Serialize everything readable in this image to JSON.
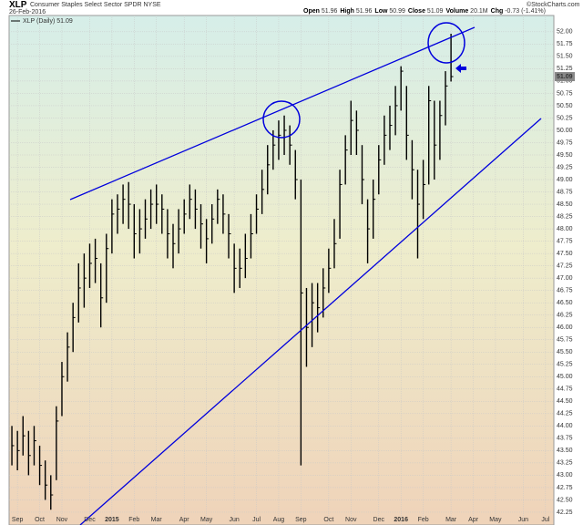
{
  "header": {
    "symbol": "XLP",
    "description": "Consumer Staples Select Sector SPDR NYSE",
    "date": "26-Feb-2016",
    "credit": "©StockCharts.com",
    "stats": [
      {
        "label": "Open",
        "value": "51.96"
      },
      {
        "label": "High",
        "value": "51.96"
      },
      {
        "label": "Low",
        "value": "50.99"
      },
      {
        "label": "Close",
        "value": "51.09"
      },
      {
        "label": "Volume",
        "value": "20.1M"
      },
      {
        "label": "Chg",
        "value": "-0.73 (-1.41%)"
      }
    ]
  },
  "chart_data": {
    "type": "ohlc",
    "last_price_label": "51.09",
    "grid": true,
    "categories": [
      null,
      "Sep",
      null,
      null,
      null,
      "Oct",
      null,
      null,
      null,
      "Nov",
      null,
      null,
      null,
      null,
      "Dec",
      null,
      null,
      null,
      "2015",
      null,
      null,
      null,
      "Feb",
      null,
      null,
      null,
      "Mar",
      null,
      null,
      null,
      null,
      "Apr",
      null,
      null,
      null,
      "May",
      null,
      null,
      null,
      null,
      "Jun",
      null,
      null,
      null,
      "Jul",
      null,
      null,
      null,
      "Aug",
      null,
      null,
      null,
      "Sep",
      null,
      null,
      null,
      null,
      "Oct",
      null,
      null,
      null,
      "Nov",
      null,
      null,
      null,
      null,
      "Dec",
      null,
      null,
      null,
      "2016",
      null,
      null,
      null,
      "Feb",
      null,
      null,
      null,
      null,
      "Mar",
      null,
      null,
      null,
      "Apr",
      null,
      null,
      null,
      "May",
      null,
      null,
      null,
      null,
      "Jun",
      null,
      null,
      null,
      "Jul",
      null
    ],
    "series": [
      {
        "name": "XLP (Daily) 51.09",
        "color": "#000000",
        "values": [
          43.6,
          43.5,
          43.8,
          43.4,
          43.7,
          43.2,
          42.8,
          42.6,
          44.1,
          45.0,
          45.6,
          46.2,
          46.8,
          47.0,
          47.3,
          47.4,
          46.6,
          47.6,
          48.3,
          48.4,
          48.6,
          48.5,
          47.9,
          48.0,
          48.2,
          48.5,
          48.5,
          48.4,
          47.9,
          47.7,
          48.0,
          48.3,
          48.6,
          48.4,
          48.1,
          47.8,
          48.2,
          48.6,
          48.3,
          47.9,
          47.2,
          47.2,
          47.4,
          47.9,
          48.4,
          48.8,
          49.3,
          49.7,
          49.9,
          50.0,
          49.7,
          49.0,
          46.7,
          46.0,
          46.5,
          46.4,
          46.8,
          47.2,
          47.7,
          48.9,
          49.6,
          50.2,
          50.0,
          49.0,
          48.0,
          48.6,
          49.4,
          49.9,
          50.1,
          50.5,
          51.2,
          49.9,
          49.2,
          48.5,
          48.9,
          50.6,
          49.7,
          50.3,
          50.9,
          51.09,
          null,
          null,
          null,
          null,
          null,
          null,
          null,
          null,
          null,
          null,
          null,
          null,
          null,
          null,
          null,
          null,
          null,
          null
        ],
        "high": [
          44.0,
          43.9,
          44.2,
          43.9,
          44.0,
          43.6,
          43.3,
          43.0,
          44.4,
          45.3,
          45.9,
          46.5,
          47.3,
          47.5,
          47.7,
          47.8,
          47.3,
          47.9,
          48.6,
          48.7,
          48.9,
          48.95,
          48.5,
          48.4,
          48.6,
          48.8,
          48.9,
          48.7,
          48.4,
          48.1,
          48.4,
          48.6,
          48.9,
          48.8,
          48.5,
          48.2,
          48.5,
          48.8,
          48.7,
          48.3,
          47.7,
          47.6,
          47.9,
          48.3,
          48.7,
          49.2,
          49.7,
          50.0,
          50.2,
          50.3,
          50.1,
          49.6,
          49.0,
          46.8,
          46.9,
          46.9,
          47.2,
          47.6,
          48.2,
          49.2,
          49.9,
          50.6,
          50.4,
          49.7,
          48.6,
          49.0,
          49.7,
          50.3,
          50.5,
          50.9,
          51.3,
          50.9,
          49.8,
          49.2,
          49.4,
          50.9,
          50.6,
          50.6,
          51.2,
          51.96,
          null,
          null,
          null,
          null,
          null,
          null,
          null,
          null,
          null,
          null,
          null,
          null,
          null,
          null,
          null,
          null,
          null,
          null
        ],
        "low": [
          43.2,
          43.1,
          43.4,
          43.0,
          43.2,
          42.8,
          42.5,
          42.3,
          42.9,
          44.2,
          44.9,
          45.5,
          46.1,
          46.4,
          46.8,
          46.9,
          46.0,
          46.5,
          47.5,
          47.9,
          48.1,
          48.0,
          47.4,
          47.5,
          47.8,
          48.0,
          48.1,
          47.9,
          47.4,
          47.2,
          47.5,
          47.9,
          48.2,
          48.0,
          47.6,
          47.3,
          47.7,
          48.1,
          47.9,
          47.4,
          46.7,
          46.8,
          47.0,
          47.4,
          47.9,
          48.3,
          48.7,
          49.2,
          49.4,
          49.5,
          49.3,
          48.6,
          43.2,
          45.2,
          45.6,
          45.9,
          46.2,
          46.7,
          47.2,
          47.8,
          48.9,
          49.5,
          49.5,
          48.5,
          47.3,
          47.8,
          48.7,
          49.3,
          49.6,
          49.9,
          50.4,
          49.4,
          48.6,
          47.4,
          48.2,
          48.9,
          49.0,
          49.4,
          50.1,
          50.99,
          null,
          null,
          null,
          null,
          null,
          null,
          null,
          null,
          null,
          null,
          null,
          null,
          null,
          null,
          null,
          null,
          null,
          null
        ]
      }
    ],
    "ylim": [
      41.99,
      52.33
    ],
    "yticks": [
      42.25,
      {
        "value": 42.5,
        "label": "42.50"
      },
      42.75,
      {
        "value": 43,
        "label": "43.00"
      },
      43.25,
      {
        "value": 43.5,
        "label": "43.50"
      },
      43.75,
      {
        "value": 44,
        "label": "44.00"
      },
      44.25,
      {
        "value": 44.5,
        "label": "44.50"
      },
      44.75,
      {
        "value": 45,
        "label": "45.00"
      },
      45.25,
      {
        "value": 45.5,
        "label": "45.50"
      },
      45.75,
      {
        "value": 46,
        "label": "46.00"
      },
      46.25,
      {
        "value": 46.5,
        "label": "46.50"
      },
      46.75,
      {
        "value": 47,
        "label": "47.00"
      },
      47.25,
      {
        "value": 47.5,
        "label": "47.50"
      },
      47.75,
      {
        "value": 48,
        "label": "48.00"
      },
      48.25,
      {
        "value": 48.5,
        "label": "48.50"
      },
      48.75,
      {
        "value": 49,
        "label": "49.00"
      },
      49.25,
      {
        "value": 49.5,
        "label": "49.50"
      },
      49.75,
      {
        "value": 50,
        "label": "50.00"
      },
      50.25,
      {
        "value": 50.5,
        "label": "50.50"
      },
      50.75,
      {
        "value": 51,
        "label": "51.00"
      },
      51.25,
      {
        "value": 51.5,
        "label": "51.50"
      },
      51.75,
      {
        "value": 52,
        "label": "52.00"
      }
    ]
  }
}
